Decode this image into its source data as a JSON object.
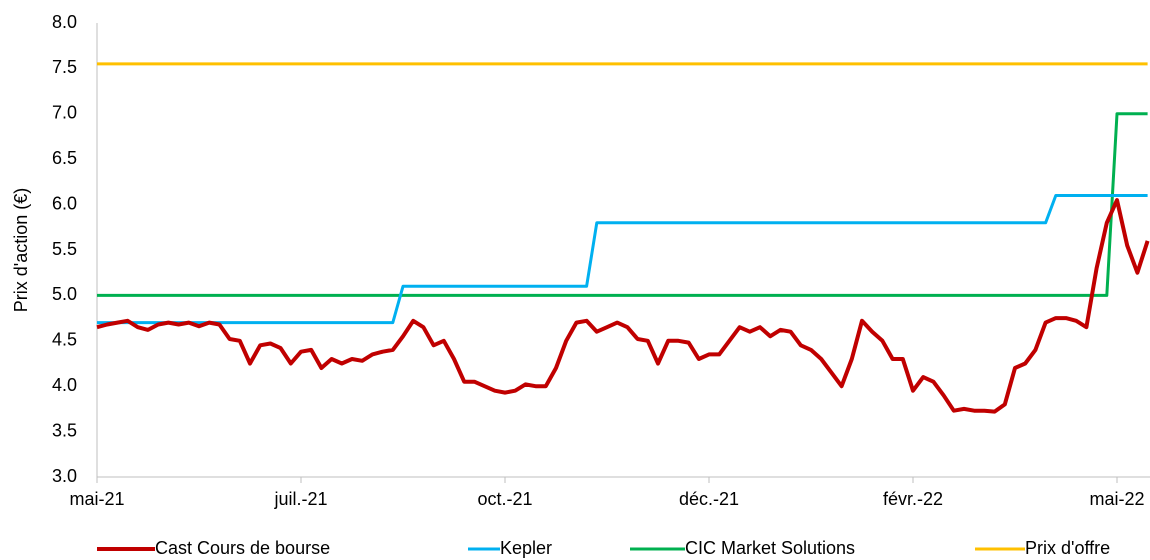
{
  "chart_data": {
    "type": "line",
    "y_label": "Prix d'action (€)",
    "categories": [
      "mai-21",
      null,
      null,
      null,
      null,
      null,
      null,
      null,
      null,
      null,
      null,
      null,
      null,
      null,
      null,
      null,
      null,
      null,
      null,
      null,
      "juil.-21",
      null,
      null,
      null,
      null,
      null,
      null,
      null,
      null,
      null,
      null,
      null,
      null,
      null,
      null,
      null,
      null,
      null,
      null,
      null,
      "oct.-21",
      null,
      null,
      null,
      null,
      null,
      null,
      null,
      null,
      null,
      null,
      null,
      null,
      null,
      null,
      null,
      null,
      null,
      null,
      null,
      "déc.-21",
      null,
      null,
      null,
      null,
      null,
      null,
      null,
      null,
      null,
      null,
      null,
      null,
      null,
      null,
      null,
      null,
      null,
      null,
      null,
      "févr.-22",
      null,
      null,
      null,
      null,
      null,
      null,
      null,
      null,
      null,
      null,
      null,
      null,
      null,
      null,
      null,
      null,
      null,
      null,
      null,
      "mai-22",
      null,
      null,
      null
    ],
    "series": [
      {
        "name": "Cast Cours de bourse",
        "color": "#c00000",
        "values": [
          4.65,
          4.68,
          4.7,
          4.72,
          4.65,
          4.62,
          4.68,
          4.7,
          4.68,
          4.7,
          4.66,
          4.7,
          4.68,
          4.52,
          4.5,
          4.25,
          4.45,
          4.47,
          4.42,
          4.25,
          4.38,
          4.4,
          4.2,
          4.3,
          4.25,
          4.3,
          4.28,
          4.35,
          4.38,
          4.4,
          4.55,
          4.72,
          4.65,
          4.45,
          4.5,
          4.3,
          4.05,
          4.05,
          4.0,
          3.95,
          3.93,
          3.95,
          4.02,
          4.0,
          4.0,
          4.2,
          4.5,
          4.7,
          4.72,
          4.6,
          4.65,
          4.7,
          4.65,
          4.52,
          4.5,
          4.25,
          4.5,
          4.5,
          4.48,
          4.3,
          4.35,
          4.35,
          4.5,
          4.65,
          4.6,
          4.65,
          4.55,
          4.62,
          4.6,
          4.45,
          4.4,
          4.3,
          4.15,
          4.0,
          4.3,
          4.72,
          4.6,
          4.5,
          4.3,
          4.3,
          3.95,
          4.1,
          4.05,
          3.9,
          3.73,
          3.75,
          3.73,
          3.73,
          3.72,
          3.8,
          4.2,
          4.25,
          4.4,
          4.7,
          4.75,
          4.75,
          4.72,
          4.65,
          5.3,
          5.8,
          6.05,
          5.55,
          5.25,
          5.6
        ]
      },
      {
        "name": "Kepler",
        "color": "#00b0f0",
        "values": [
          4.7,
          4.7,
          4.7,
          4.7,
          4.7,
          4.7,
          4.7,
          4.7,
          4.7,
          4.7,
          4.7,
          4.7,
          4.7,
          4.7,
          4.7,
          4.7,
          4.7,
          4.7,
          4.7,
          4.7,
          4.7,
          4.7,
          4.7,
          4.7,
          4.7,
          4.7,
          4.7,
          4.7,
          4.7,
          4.7,
          5.1,
          5.1,
          5.1,
          5.1,
          5.1,
          5.1,
          5.1,
          5.1,
          5.1,
          5.1,
          5.1,
          5.1,
          5.1,
          5.1,
          5.1,
          5.1,
          5.1,
          5.1,
          5.1,
          5.8,
          5.8,
          5.8,
          5.8,
          5.8,
          5.8,
          5.8,
          5.8,
          5.8,
          5.8,
          5.8,
          5.8,
          5.8,
          5.8,
          5.8,
          5.8,
          5.8,
          5.8,
          5.8,
          5.8,
          5.8,
          5.8,
          5.8,
          5.8,
          5.8,
          5.8,
          5.8,
          5.8,
          5.8,
          5.8,
          5.8,
          5.8,
          5.8,
          5.8,
          5.8,
          5.8,
          5.8,
          5.8,
          5.8,
          5.8,
          5.8,
          5.8,
          5.8,
          5.8,
          5.8,
          6.1,
          6.1,
          6.1,
          6.1,
          6.1,
          6.1,
          6.1,
          6.1,
          6.1,
          6.1
        ]
      },
      {
        "name": "CIC Market Solutions",
        "color": "#00b050",
        "values": [
          5.0,
          5.0,
          5.0,
          5.0,
          5.0,
          5.0,
          5.0,
          5.0,
          5.0,
          5.0,
          5.0,
          5.0,
          5.0,
          5.0,
          5.0,
          5.0,
          5.0,
          5.0,
          5.0,
          5.0,
          5.0,
          5.0,
          5.0,
          5.0,
          5.0,
          5.0,
          5.0,
          5.0,
          5.0,
          5.0,
          5.0,
          5.0,
          5.0,
          5.0,
          5.0,
          5.0,
          5.0,
          5.0,
          5.0,
          5.0,
          5.0,
          5.0,
          5.0,
          5.0,
          5.0,
          5.0,
          5.0,
          5.0,
          5.0,
          5.0,
          5.0,
          5.0,
          5.0,
          5.0,
          5.0,
          5.0,
          5.0,
          5.0,
          5.0,
          5.0,
          5.0,
          5.0,
          5.0,
          5.0,
          5.0,
          5.0,
          5.0,
          5.0,
          5.0,
          5.0,
          5.0,
          5.0,
          5.0,
          5.0,
          5.0,
          5.0,
          5.0,
          5.0,
          5.0,
          5.0,
          5.0,
          5.0,
          5.0,
          5.0,
          5.0,
          5.0,
          5.0,
          5.0,
          5.0,
          5.0,
          5.0,
          5.0,
          5.0,
          5.0,
          5.0,
          5.0,
          5.0,
          5.0,
          5.0,
          5.0,
          7.0,
          7.0,
          7.0,
          7.0
        ]
      },
      {
        "name": "Prix d'offre",
        "color": "#ffc000",
        "values": [
          7.55,
          7.55,
          7.55,
          7.55,
          7.55,
          7.55,
          7.55,
          7.55,
          7.55,
          7.55,
          7.55,
          7.55,
          7.55,
          7.55,
          7.55,
          7.55,
          7.55,
          7.55,
          7.55,
          7.55,
          7.55,
          7.55,
          7.55,
          7.55,
          7.55,
          7.55,
          7.55,
          7.55,
          7.55,
          7.55,
          7.55,
          7.55,
          7.55,
          7.55,
          7.55,
          7.55,
          7.55,
          7.55,
          7.55,
          7.55,
          7.55,
          7.55,
          7.55,
          7.55,
          7.55,
          7.55,
          7.55,
          7.55,
          7.55,
          7.55,
          7.55,
          7.55,
          7.55,
          7.55,
          7.55,
          7.55,
          7.55,
          7.55,
          7.55,
          7.55,
          7.55,
          7.55,
          7.55,
          7.55,
          7.55,
          7.55,
          7.55,
          7.55,
          7.55,
          7.55,
          7.55,
          7.55,
          7.55,
          7.55,
          7.55,
          7.55,
          7.55,
          7.55,
          7.55,
          7.55,
          7.55,
          7.55,
          7.55,
          7.55,
          7.55,
          7.55,
          7.55,
          7.55,
          7.55,
          7.55,
          7.55,
          7.55,
          7.55,
          7.55,
          7.55,
          7.55,
          7.55,
          7.55,
          7.55,
          7.55,
          7.55,
          7.55,
          7.55,
          7.55
        ]
      }
    ],
    "ylim": [
      3,
      8
    ],
    "yticks": [
      {
        "value": 3,
        "label": "3.0"
      },
      {
        "value": 3.5,
        "label": "3.5"
      },
      {
        "value": 4,
        "label": "4.0"
      },
      {
        "value": 4.5,
        "label": "4.5"
      },
      {
        "value": 5,
        "label": "5.0"
      },
      {
        "value": 5.5,
        "label": "5.5"
      },
      {
        "value": 6,
        "label": "6.0"
      },
      {
        "value": 6.5,
        "label": "6.5"
      },
      {
        "value": 7,
        "label": "7.0"
      },
      {
        "value": 7.5,
        "label": "7.5"
      },
      {
        "value": 8,
        "label": "8.0"
      }
    ],
    "grid": false,
    "legend": "bottom"
  }
}
